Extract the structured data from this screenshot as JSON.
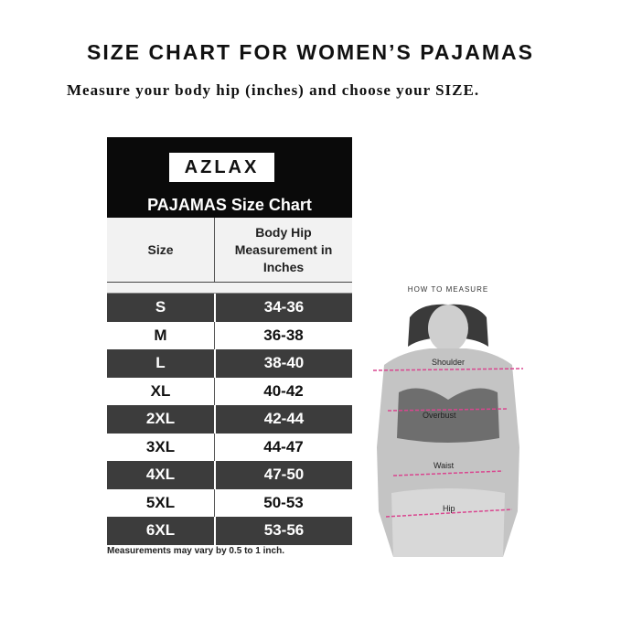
{
  "title": "SIZE CHART FOR WOMEN’S PAJAMAS",
  "subtitle": "Measure your body hip (inches) and choose your SIZE.",
  "chart": {
    "logo": "AZLAX",
    "heading": "PAJAMAS Size Chart",
    "col_size": "Size",
    "col_hip": "Body Hip Measurement in Inches",
    "rows": [
      {
        "size": "S",
        "hip": "34-36"
      },
      {
        "size": "M",
        "hip": "36-38"
      },
      {
        "size": "L",
        "hip": "38-40"
      },
      {
        "size": "XL",
        "hip": "40-42"
      },
      {
        "size": "2XL",
        "hip": "42-44"
      },
      {
        "size": "3XL",
        "hip": "44-47"
      },
      {
        "size": "4XL",
        "hip": "47-50"
      },
      {
        "size": "5XL",
        "hip": "50-53"
      },
      {
        "size": "6XL",
        "hip": "53-56"
      }
    ],
    "note": "Measurements may vary by 0.5 to 1 inch."
  },
  "figure": {
    "heading": "HOW TO MEASURE",
    "labels": [
      "Shoulder",
      "Overbust",
      "Waist",
      "Hip"
    ],
    "line_color": "#d9468f"
  }
}
